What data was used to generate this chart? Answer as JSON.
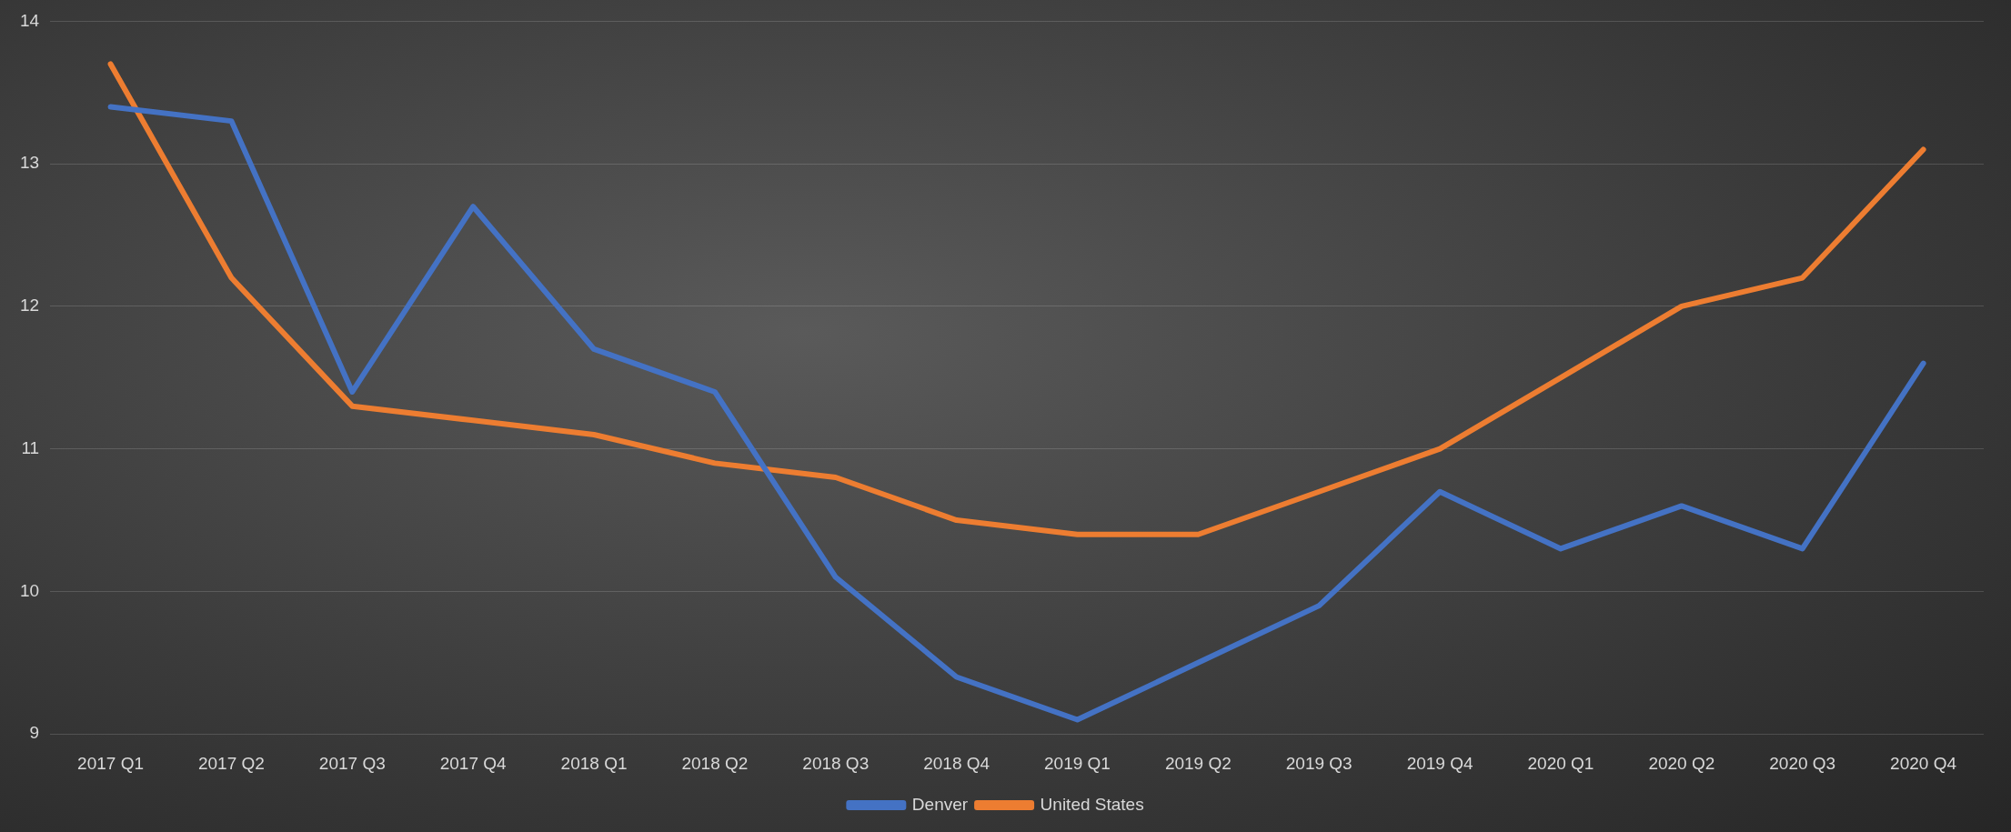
{
  "chart_data": {
    "type": "line",
    "categories": [
      "2017 Q1",
      "2017 Q2",
      "2017 Q3",
      "2017 Q4",
      "2018 Q1",
      "2018 Q2",
      "2018 Q3",
      "2018 Q4",
      "2019 Q1",
      "2019 Q2",
      "2019 Q3",
      "2019 Q4",
      "2020 Q1",
      "2020 Q2",
      "2020 Q3",
      "2020 Q4"
    ],
    "series": [
      {
        "name": "Denver",
        "color": "#4472c4",
        "values": [
          13.4,
          13.3,
          11.4,
          12.7,
          11.7,
          11.4,
          10.1,
          9.4,
          9.1,
          9.5,
          9.9,
          10.7,
          10.3,
          10.6,
          10.3,
          11.6
        ]
      },
      {
        "name": "United States",
        "color": "#ed7d31",
        "values": [
          13.7,
          12.2,
          11.3,
          11.2,
          11.1,
          10.9,
          10.8,
          10.5,
          10.4,
          10.4,
          10.7,
          11.0,
          11.5,
          12.0,
          12.2,
          13.1
        ]
      }
    ],
    "ylim": [
      9,
      14
    ],
    "yticks": [
      9,
      10,
      11,
      12,
      13,
      14
    ],
    "grid": "y",
    "legend": "bottom",
    "marker": "none",
    "line_style": "solid"
  }
}
